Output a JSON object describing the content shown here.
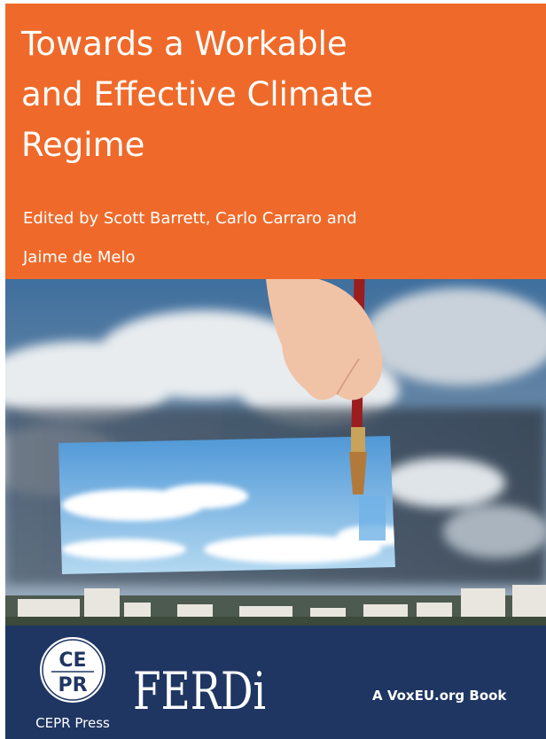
{
  "cover": {
    "title_lines": [
      "Towards a Workable",
      "and Effective Climate",
      "Regime"
    ],
    "editors_lines": [
      "Edited by Scott Barrett, Carlo Carraro and",
      "Jaime de Melo"
    ],
    "publisher_logo": {
      "top": "CE",
      "bottom": "PR"
    },
    "publisher": "CEPR Press",
    "partner_logo": "FERDi",
    "series": "A VoxEU.org Book"
  }
}
